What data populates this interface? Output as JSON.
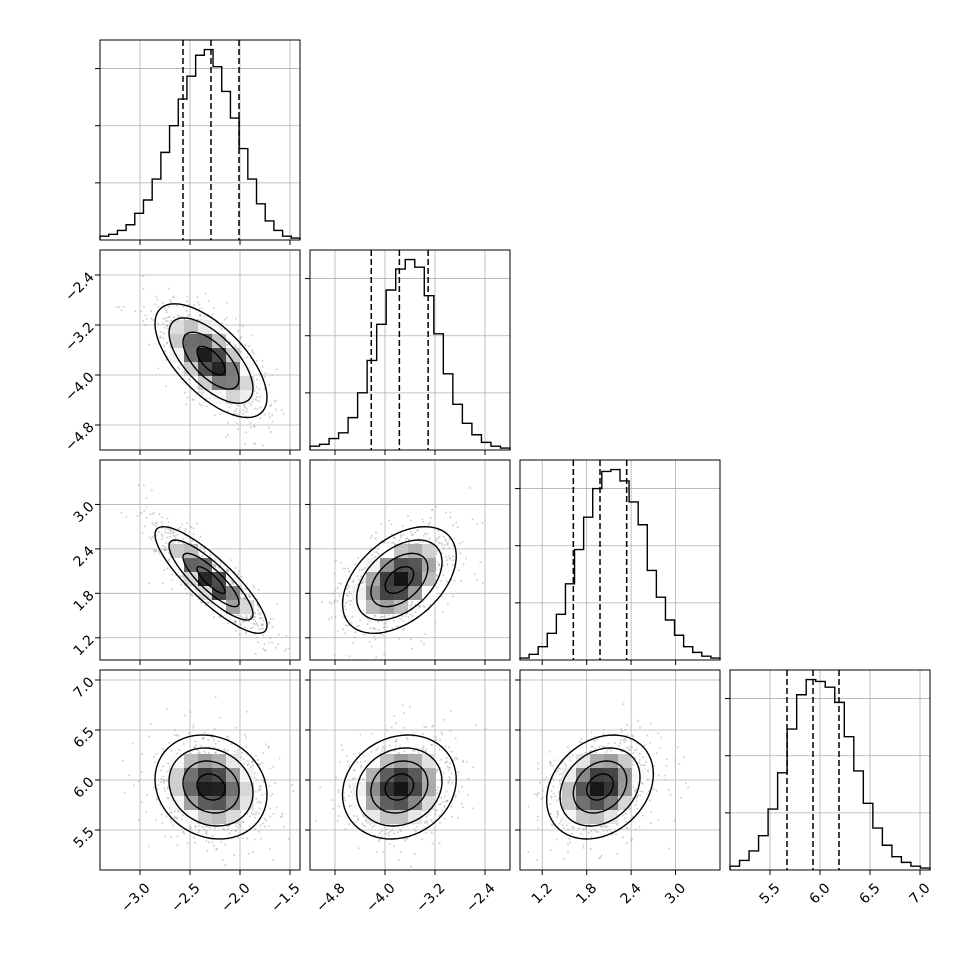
{
  "chart_data": {
    "type": "corner",
    "parameters": [
      {
        "range": [
          -3.4,
          -1.4
        ],
        "ticks": [
          -3.0,
          -2.5,
          -2.0,
          -1.5
        ],
        "tick_labels": [
          "−3.0",
          "−2.5",
          "−2.0",
          "−1.5"
        ],
        "quantiles": [
          -2.57,
          -2.29,
          -2.01
        ],
        "hist_edges": [
          -3.4,
          -1.4
        ],
        "hist_counts": [
          2,
          3,
          5,
          8,
          14,
          21,
          32,
          46,
          60,
          74,
          86,
          97,
          100,
          91,
          78,
          64,
          48,
          32,
          19,
          10,
          5,
          2,
          1
        ]
      },
      {
        "range": [
          -5.2,
          -2.0
        ],
        "ticks": [
          -4.8,
          -4.0,
          -3.2,
          -2.4
        ],
        "tick_labels": [
          "−4.8",
          "−4.0",
          "−3.2",
          "−2.4"
        ],
        "quantiles": [
          -4.22,
          -3.77,
          -3.31
        ],
        "hist_edges": [
          -5.2,
          -2.0
        ],
        "hist_counts": [
          2,
          3,
          6,
          9,
          17,
          30,
          47,
          66,
          84,
          95,
          100,
          96,
          81,
          61,
          40,
          24,
          14,
          8,
          4,
          2,
          1
        ]
      },
      {
        "range": [
          0.9,
          3.6
        ],
        "ticks": [
          1.2,
          1.8,
          2.4,
          3.0
        ],
        "tick_labels": [
          "1.2",
          "1.8",
          "2.4",
          "3.0"
        ],
        "quantiles": [
          1.62,
          1.98,
          2.34
        ],
        "hist_edges": [
          0.9,
          3.6
        ],
        "hist_counts": [
          1,
          3,
          7,
          14,
          24,
          40,
          58,
          75,
          90,
          99,
          100,
          94,
          83,
          71,
          47,
          33,
          21,
          13,
          7,
          4,
          2,
          1
        ]
      },
      {
        "range": [
          5.1,
          7.1
        ],
        "ticks": [
          5.5,
          6.0,
          6.5,
          7.0
        ],
        "tick_labels": [
          "5.5",
          "6.0",
          "6.5",
          "7.0"
        ],
        "quantiles": [
          5.67,
          5.93,
          6.19
        ],
        "hist_edges": [
          5.1,
          7.1
        ],
        "hist_counts": [
          2,
          5,
          10,
          18,
          32,
          51,
          74,
          92,
          100,
          99,
          96,
          88,
          70,
          52,
          35,
          22,
          13,
          7,
          4,
          2,
          1
        ]
      }
    ],
    "correlations": [
      [
        1.0,
        -0.65,
        -0.85,
        -0.15
      ],
      [
        -0.65,
        1.0,
        0.45,
        0.15
      ],
      [
        -0.85,
        0.45,
        1.0,
        0.25
      ],
      [
        -0.15,
        0.15,
        0.25,
        1.0
      ]
    ],
    "contour_levels": [
      0.5,
      1.0,
      1.5,
      2.0
    ],
    "grid": true
  }
}
